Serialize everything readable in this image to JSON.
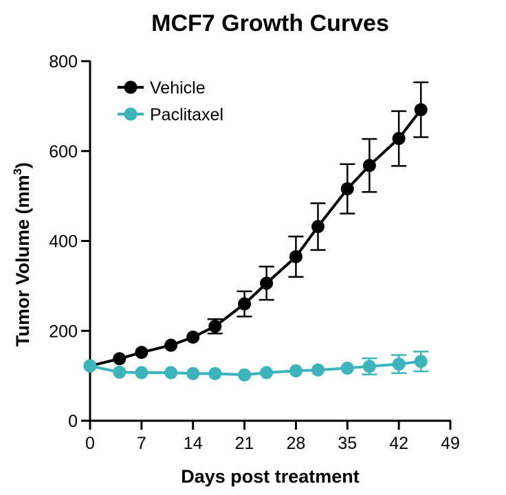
{
  "chart_data": {
    "type": "line",
    "title": "MCF7 Growth Curves",
    "xlabel": "Days post treatment",
    "ylabel": "Tumor Volume (mm",
    "ylabel_superscript": "3",
    "ylabel_suffix": ")",
    "xlim": [
      0,
      49
    ],
    "ylim": [
      0,
      800
    ],
    "xticks": [
      0,
      7,
      14,
      21,
      28,
      35,
      42,
      49
    ],
    "yticks": [
      0,
      200,
      400,
      600,
      800
    ],
    "grid": false,
    "legend_position": "top-left",
    "series": [
      {
        "name": "Vehicle",
        "color": "#000000",
        "x": [
          0,
          4,
          7,
          11,
          14,
          17,
          21,
          24,
          28,
          31,
          35,
          38,
          42,
          45
        ],
        "y": [
          122,
          138,
          152,
          168,
          186,
          210,
          260,
          306,
          365,
          432,
          516,
          568,
          628,
          692
        ],
        "error": [
          0,
          0,
          0,
          0,
          0,
          16,
          28,
          37,
          45,
          52,
          55,
          59,
          61,
          61
        ]
      },
      {
        "name": "Paclitaxel",
        "color": "#3BB4BC",
        "x": [
          0,
          4,
          7,
          11,
          14,
          17,
          21,
          24,
          28,
          31,
          35,
          38,
          42,
          45
        ],
        "y": [
          122,
          108,
          107,
          107,
          105,
          105,
          102,
          107,
          111,
          113,
          117,
          121,
          126,
          132
        ],
        "error": [
          0,
          0,
          0,
          0,
          0,
          0,
          0,
          0,
          0,
          0,
          0,
          18,
          20,
          22
        ]
      }
    ]
  }
}
